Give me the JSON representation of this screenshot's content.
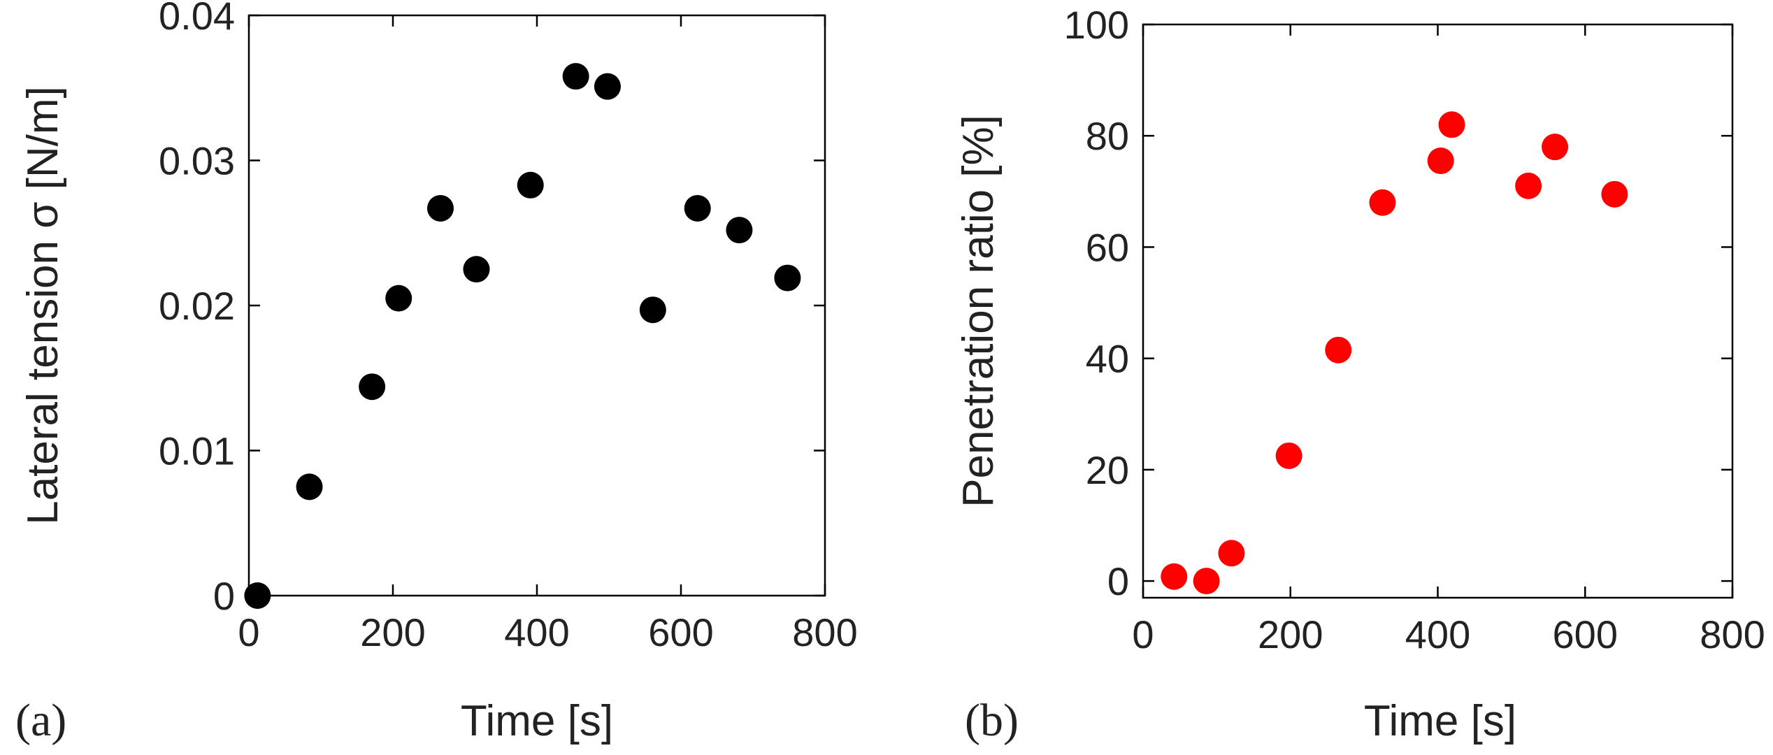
{
  "chart_data": [
    {
      "type": "scatter",
      "panel_label": "(a)",
      "title": "",
      "xlabel": "Time [s]",
      "ylabel": "Lateral tension σ [N/m]",
      "xlim": [
        0,
        800
      ],
      "ylim": [
        0,
        0.04
      ],
      "xticks": [
        "0",
        "200",
        "400",
        "600",
        "800"
      ],
      "yticks": [
        "0",
        "0.01",
        "0.02",
        "0.03",
        "0.04"
      ],
      "grid": false,
      "marker_color": "#000000",
      "series": [
        {
          "points": [
            [
              12,
              0.0
            ],
            [
              84,
              0.0075
            ],
            [
              171,
              0.0144
            ],
            [
              208,
              0.0205
            ],
            [
              266,
              0.0267
            ],
            [
              316,
              0.0225
            ],
            [
              391,
              0.0283
            ],
            [
              454,
              0.0358
            ],
            [
              498,
              0.0351
            ],
            [
              561,
              0.0197
            ],
            [
              623,
              0.0267
            ],
            [
              681,
              0.0252
            ],
            [
              748,
              0.0219
            ]
          ]
        }
      ]
    },
    {
      "type": "scatter",
      "panel_label": "(b)",
      "title": "",
      "xlabel": "Time [s]",
      "ylabel": "Penetration ratio [%]",
      "xlim": [
        0,
        800
      ],
      "ylim": [
        -3,
        100
      ],
      "xticks": [
        "0",
        "200",
        "400",
        "600",
        "800"
      ],
      "yticks": [
        "0",
        "20",
        "40",
        "60",
        "80",
        "100"
      ],
      "grid": false,
      "marker_color": "#ff0000",
      "series": [
        {
          "points": [
            [
              42,
              0.8
            ],
            [
              86,
              0.0
            ],
            [
              120,
              5.0
            ],
            [
              198,
              22.5
            ],
            [
              265,
              41.5
            ],
            [
              325,
              68.0
            ],
            [
              404,
              75.5
            ],
            [
              419,
              82.0
            ],
            [
              523,
              71.0
            ],
            [
              559,
              78.0
            ],
            [
              640,
              69.5
            ]
          ]
        }
      ]
    }
  ]
}
